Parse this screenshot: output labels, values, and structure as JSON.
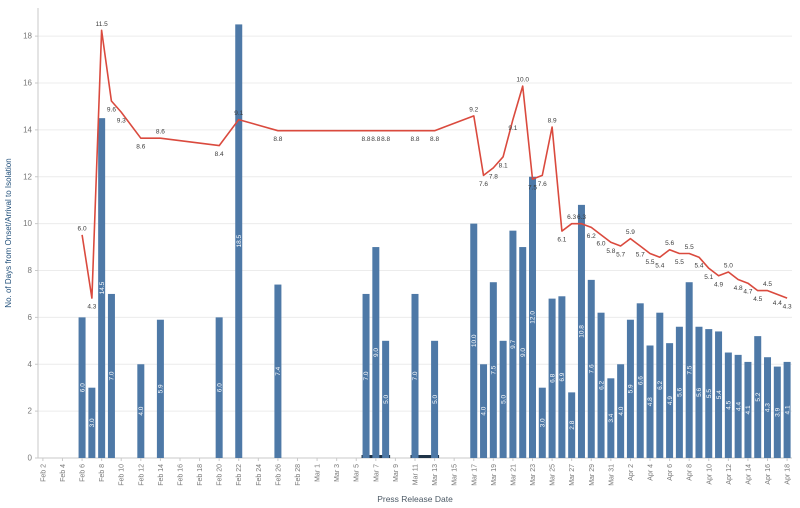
{
  "chart_data": {
    "type": "combo",
    "xlabel": "Press Release Date",
    "ylabel": "No. of Days from Onset/Arrival to Isolation",
    "x_tick_every": 2,
    "categories": [
      "Feb 2",
      "Feb 3",
      "Feb 4",
      "Feb 5",
      "Feb 6",
      "Feb 7",
      "Feb 8",
      "Feb 9",
      "Feb 10",
      "Feb 11",
      "Feb 12",
      "Feb 13",
      "Feb 14",
      "Feb 15",
      "Feb 16",
      "Feb 17",
      "Feb 18",
      "Feb 19",
      "Feb 20",
      "Feb 21",
      "Feb 22",
      "Feb 23",
      "Feb 24",
      "Feb 25",
      "Feb 26",
      "Feb 27",
      "Feb 28",
      "Feb 29",
      "Mar 1",
      "Mar 2",
      "Mar 3",
      "Mar 4",
      "Mar 5",
      "Mar 6",
      "Mar 7",
      "Mar 8",
      "Mar 9",
      "Mar 10",
      "Mar 11",
      "Mar 12",
      "Mar 13",
      "Mar 14",
      "Mar 15",
      "Mar 16",
      "Mar 17",
      "Mar 18",
      "Mar 19",
      "Mar 20",
      "Mar 21",
      "Mar 22",
      "Mar 23",
      "Mar 24",
      "Mar 25",
      "Mar 26",
      "Mar 27",
      "Mar 28",
      "Mar 29",
      "Mar 30",
      "Mar 31",
      "Apr 1",
      "Apr 2",
      "Apr 3",
      "Apr 4",
      "Apr 5",
      "Apr 6",
      "Apr 7",
      "Apr 8",
      "Apr 9",
      "Apr 10",
      "Apr 11",
      "Apr 12",
      "Apr 13",
      "Apr 14",
      "Apr 15",
      "Apr 16",
      "Apr 17",
      "Apr 18"
    ],
    "series": [
      {
        "name": "bar",
        "type": "bar",
        "axis": "left",
        "values": [
          null,
          null,
          null,
          null,
          6.0,
          3.0,
          14.5,
          7.0,
          null,
          null,
          4.0,
          null,
          5.9,
          null,
          null,
          null,
          null,
          null,
          6.0,
          null,
          18.5,
          null,
          null,
          null,
          7.4,
          null,
          null,
          null,
          null,
          null,
          null,
          null,
          null,
          7.0,
          9.0,
          5.0,
          null,
          null,
          7.0,
          null,
          5.0,
          null,
          null,
          null,
          10.0,
          4.0,
          7.5,
          5.0,
          9.7,
          9.0,
          12.0,
          3.0,
          6.8,
          6.9,
          2.8,
          10.8,
          7.6,
          6.2,
          3.4,
          4.0,
          5.9,
          6.6,
          4.8,
          6.2,
          4.9,
          5.6,
          7.5,
          5.6,
          5.5,
          5.4,
          4.5,
          4.4,
          4.1,
          5.2,
          4.3,
          3.9,
          4.1
        ]
      },
      {
        "name": "average-line",
        "type": "line",
        "axis": "right",
        "values": [
          null,
          null,
          null,
          null,
          6.0,
          4.3,
          11.5,
          9.6,
          9.3,
          null,
          8.6,
          null,
          8.6,
          null,
          null,
          null,
          null,
          null,
          8.4,
          null,
          9.1,
          null,
          null,
          null,
          8.8,
          null,
          null,
          null,
          null,
          null,
          null,
          null,
          null,
          8.8,
          8.8,
          8.8,
          null,
          null,
          8.8,
          null,
          8.8,
          null,
          null,
          null,
          9.2,
          7.6,
          7.8,
          8.1,
          9.1,
          10.0,
          7.5,
          7.6,
          8.9,
          6.1,
          6.3,
          6.3,
          6.2,
          6.0,
          5.8,
          5.7,
          5.9,
          5.7,
          5.5,
          5.4,
          5.6,
          5.5,
          5.5,
          5.4,
          5.1,
          4.9,
          5.0,
          4.8,
          4.7,
          4.5,
          4.5,
          4.4,
          4.3
        ]
      }
    ],
    "left_axis": {
      "min": 0,
      "max": 19.2,
      "ticks": [
        0,
        2,
        4,
        6,
        8,
        10,
        12,
        14,
        16,
        18
      ]
    },
    "right_axis": {
      "min": 0,
      "max": 12.1,
      "ticks_visible": false
    },
    "grid": "horizontal",
    "legend": "none",
    "baseline_marks": [
      {
        "from": "Mar 6",
        "to": "Mar 8"
      },
      {
        "from": "Mar 11",
        "to": "Mar 13"
      }
    ],
    "colors": {
      "bar": "#4e79a7",
      "line": "#da4a3e",
      "bar_label": "#ffffff",
      "line_label": "#3c3c3c",
      "axis_text": "#787878",
      "grid": "#ececec",
      "axis_line": "#c9c9c9",
      "baseline_mark": "#1f3347",
      "y_title": "#1f4e79",
      "x_title": "#4d5a66"
    }
  }
}
